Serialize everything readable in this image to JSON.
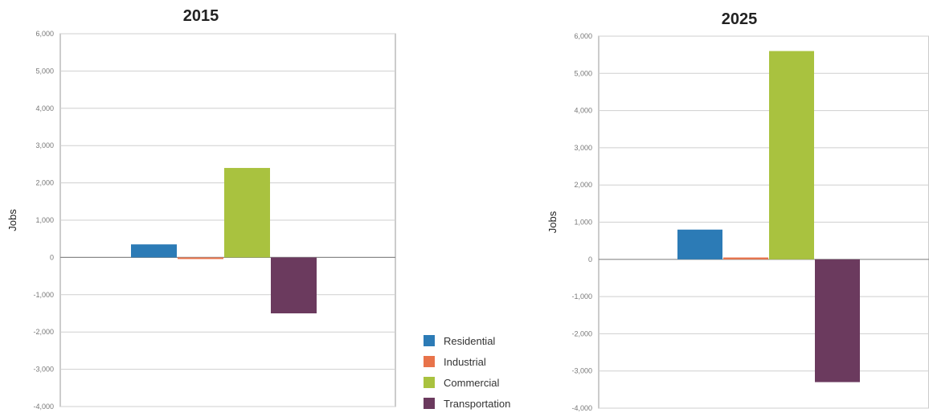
{
  "chart_data": [
    {
      "type": "bar",
      "title": "2015",
      "ylabel": "Jobs",
      "xlabel": "",
      "ylim": [
        -4000,
        6000
      ],
      "yticks": [
        6000,
        5000,
        4000,
        3000,
        2000,
        1000,
        0,
        -1000,
        -2000,
        -3000,
        -4000
      ],
      "ytick_labels": [
        "6,000",
        "5,000",
        "4,000",
        "3,000",
        "2,000",
        "1,000",
        "0",
        "-1,000",
        "-2,000",
        "-3,000",
        "-4,000"
      ],
      "grid": true,
      "series": [
        {
          "name": "Residential",
          "value": 350,
          "color": "#2c7bb6"
        },
        {
          "name": "Industrial",
          "value": -30,
          "color": "#e8734a"
        },
        {
          "name": "Commercial",
          "value": 2400,
          "color": "#a9c23f"
        },
        {
          "name": "Transportation",
          "value": -1500,
          "color": "#6b3a5e"
        }
      ]
    },
    {
      "type": "bar",
      "title": "2025",
      "ylabel": "Jobs",
      "xlabel": "",
      "ylim": [
        -4000,
        6000
      ],
      "yticks": [
        6000,
        5000,
        4000,
        3000,
        2000,
        1000,
        0,
        -1000,
        -2000,
        -3000,
        -4000
      ],
      "ytick_labels": [
        "6,000",
        "5,000",
        "4,000",
        "3,000",
        "2,000",
        "1,000",
        "0",
        "-1,000",
        "-2,000",
        "-3,000",
        "-4,000"
      ],
      "grid": true,
      "series": [
        {
          "name": "Residential",
          "value": 800,
          "color": "#2c7bb6"
        },
        {
          "name": "Industrial",
          "value": 50,
          "color": "#e8734a"
        },
        {
          "name": "Commercial",
          "value": 5600,
          "color": "#a9c23f"
        },
        {
          "name": "Transportation",
          "value": -3300,
          "color": "#6b3a5e"
        }
      ]
    }
  ],
  "legend": {
    "placement": "between charts, bottom",
    "items": [
      {
        "label": "Residential",
        "color": "#2c7bb6"
      },
      {
        "label": "Industrial",
        "color": "#e8734a"
      },
      {
        "label": "Commercial",
        "color": "#a9c23f"
      },
      {
        "label": "Transportation",
        "color": "#6b3a5e"
      }
    ]
  }
}
